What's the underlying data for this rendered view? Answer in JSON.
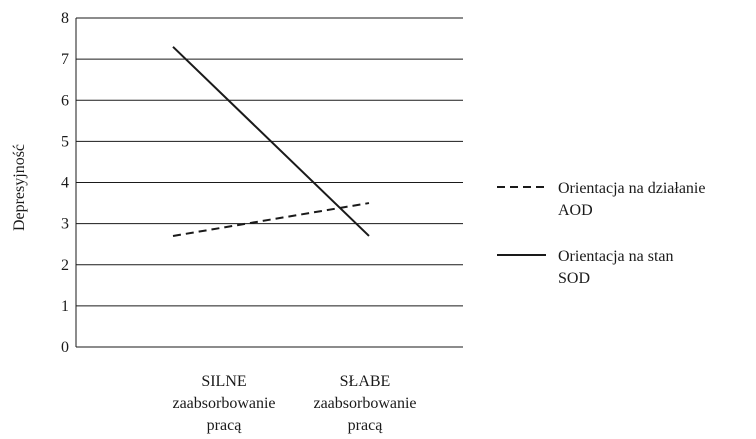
{
  "chart_data": {
    "type": "line",
    "title": "",
    "xlabel": "",
    "ylabel": "Depresyjność",
    "ylim": [
      0,
      8
    ],
    "yticks": [
      0,
      1,
      2,
      3,
      4,
      5,
      6,
      7,
      8
    ],
    "grid": true,
    "legend_position": "right",
    "categories": [
      [
        "SILNE",
        "zaabsorbowanie",
        "pracą"
      ],
      [
        "SŁABE",
        "zaabsorbowanie",
        "pracą"
      ]
    ],
    "series": [
      {
        "name": [
          "Orientacja na działanie",
          "AOD"
        ],
        "style": "dashed",
        "color": "#1a1a1a",
        "values": [
          2.7,
          3.5
        ]
      },
      {
        "name": [
          "Orientacja na stan",
          "SOD"
        ],
        "style": "solid",
        "color": "#1a1a1a",
        "values": [
          7.3,
          2.7
        ]
      }
    ]
  }
}
